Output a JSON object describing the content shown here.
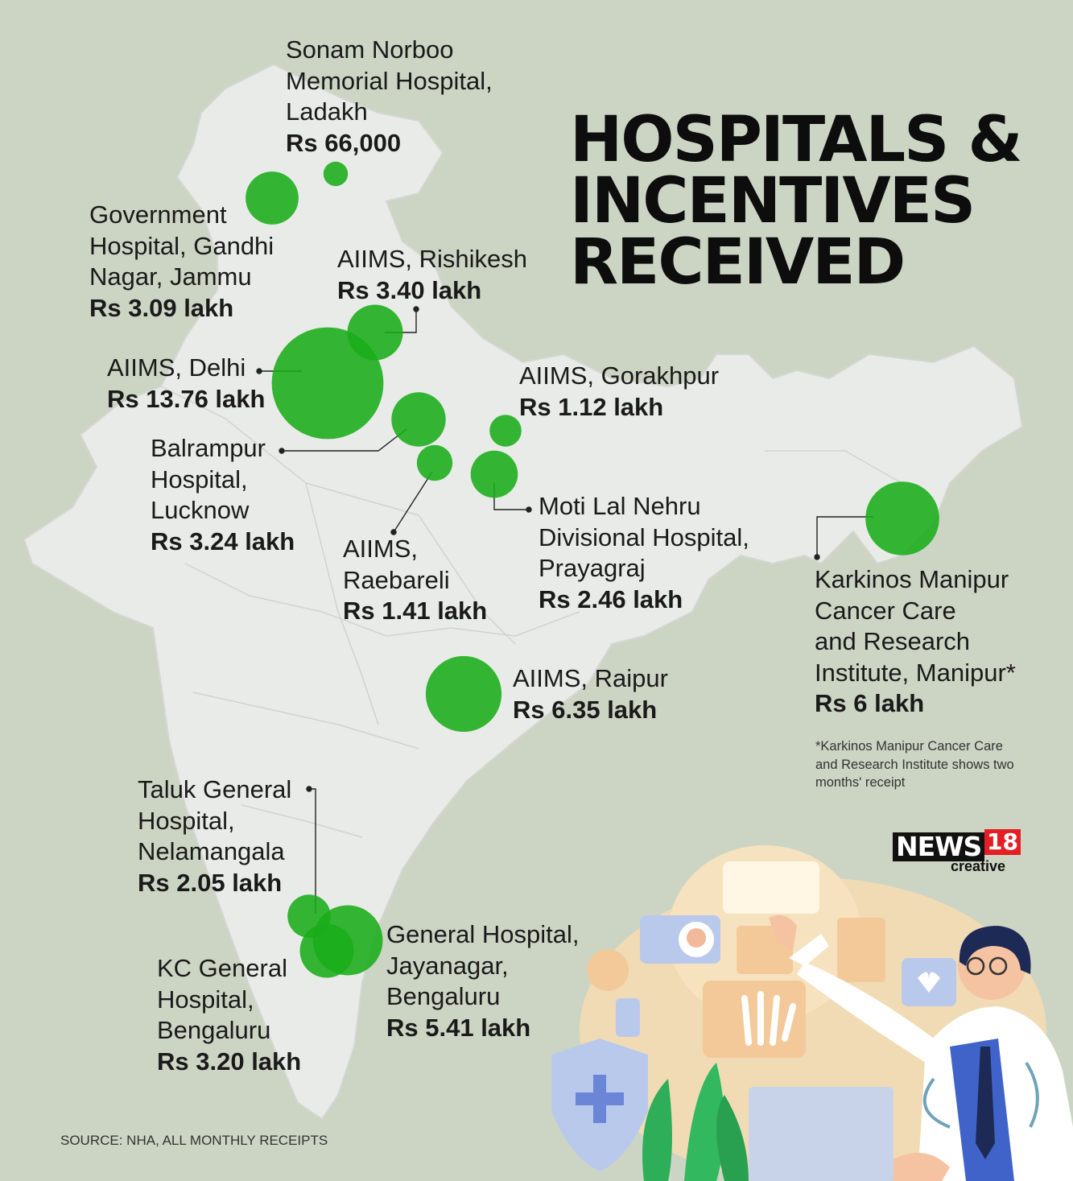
{
  "title_lines": [
    "HOSPITALS &",
    "INCENTIVES",
    "RECEIVED"
  ],
  "hospitals": [
    {
      "name_lines": [
        "Sonam Norboo",
        "Memorial Hospital,",
        "Ladakh"
      ],
      "value": "Rs 66,000",
      "lakh": 0.66
    },
    {
      "name_lines": [
        "Government",
        "Hospital, Gandhi",
        "Nagar, Jammu"
      ],
      "value": "Rs 3.09 lakh",
      "lakh": 3.09
    },
    {
      "name_lines": [
        "AIIMS, Rishikesh"
      ],
      "value": "Rs 3.40 lakh",
      "lakh": 3.4
    },
    {
      "name_lines": [
        "AIIMS, Delhi"
      ],
      "value": "Rs 13.76 lakh",
      "lakh": 13.76
    },
    {
      "name_lines": [
        "Balrampur",
        "Hospital,",
        "Lucknow"
      ],
      "value": "Rs 3.24 lakh",
      "lakh": 3.24
    },
    {
      "name_lines": [
        "AIIMS, Gorakhpur"
      ],
      "value": "Rs 1.12 lakh",
      "lakh": 1.12
    },
    {
      "name_lines": [
        "AIIMS,",
        "Raebareli"
      ],
      "value": "Rs 1.41 lakh",
      "lakh": 1.41
    },
    {
      "name_lines": [
        "Moti Lal Nehru",
        "Divisional Hospital,",
        "Prayagraj"
      ],
      "value": "Rs 2.46 lakh",
      "lakh": 2.46
    },
    {
      "name_lines": [
        "Karkinos Manipur",
        "Cancer Care",
        "and Research",
        "Institute, Manipur*"
      ],
      "value": "Rs 6 lakh",
      "lakh": 6
    },
    {
      "name_lines": [
        "AIIMS, Raipur"
      ],
      "value": "Rs 6.35 lakh",
      "lakh": 6.35
    },
    {
      "name_lines": [
        "Taluk General",
        "Hospital,",
        "Nelamangala"
      ],
      "value": "Rs 2.05 lakh",
      "lakh": 2.05
    },
    {
      "name_lines": [
        "KC General",
        "Hospital,",
        "Bengaluru"
      ],
      "value": "Rs 3.20 lakh",
      "lakh": 3.2
    },
    {
      "name_lines": [
        "General Hospital,",
        "Jayanagar,",
        "Bengaluru"
      ],
      "value": "Rs 5.41 lakh",
      "lakh": 5.41
    }
  ],
  "footnote": "*Karkinos Manipur Cancer Care and Research Institute shows two months' receipt",
  "source": "SOURCE: NHA, ALL MONTHLY RECEIPTS",
  "logo": {
    "word": "NEWS",
    "number": "18",
    "sub": "creative"
  },
  "colors": {
    "background": "#ccd5c4",
    "map": "#e9ebe8",
    "bubble": "#19ad19",
    "accent": "#e41e26"
  }
}
